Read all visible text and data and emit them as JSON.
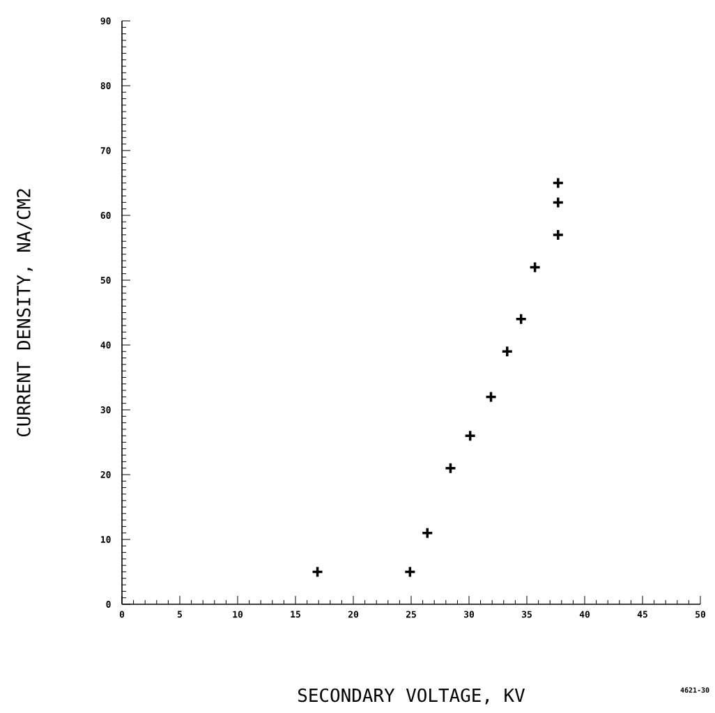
{
  "chart_data": {
    "type": "scatter",
    "xlabel": "SECONDARY VOLTAGE, KV",
    "ylabel": "CURRENT DENSITY, NA/CM2",
    "annotations": [
      "4621-30"
    ],
    "x": [
      16.9,
      24.9,
      26.4,
      28.4,
      30.1,
      31.9,
      33.3,
      34.5,
      35.7,
      37.7,
      37.7,
      37.7
    ],
    "series": [
      {
        "color": "#000000",
        "values": [
          5,
          5,
          11,
          21,
          26,
          32,
          39,
          44,
          52,
          57,
          62,
          65
        ]
      }
    ],
    "xlim": [
      0,
      50
    ],
    "ylim": [
      0,
      90
    ],
    "xticks": [
      0,
      5,
      10,
      15,
      20,
      25,
      30,
      35,
      40,
      45,
      50
    ],
    "yticks": [
      0,
      10,
      20,
      30,
      40,
      50,
      60,
      70,
      80,
      90
    ],
    "marker": "cross",
    "grid": false
  }
}
